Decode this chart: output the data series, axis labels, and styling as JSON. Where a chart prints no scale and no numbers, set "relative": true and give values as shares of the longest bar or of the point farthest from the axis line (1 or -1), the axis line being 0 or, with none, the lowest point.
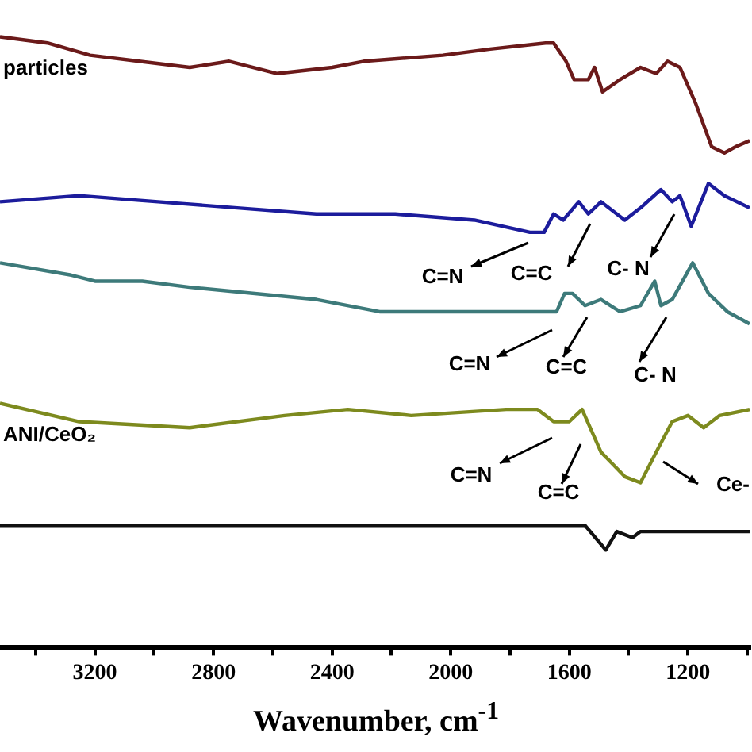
{
  "chart_data": {
    "type": "line",
    "relative": true,
    "xlabel": "Wavenumber, cm$^{-1}$",
    "xlim": [
      3520,
      992
    ],
    "xticks": [
      {
        "value": 3400,
        "label": null
      },
      3200,
      {
        "value": 3000,
        "label": null
      },
      2800,
      {
        "value": 2600,
        "label": null
      },
      2400,
      {
        "value": 2200,
        "label": null
      },
      2000,
      {
        "value": 1800,
        "label": null
      },
      1600,
      {
        "value": 1400,
        "label": null
      },
      1200,
      {
        "value": 1000,
        "label": null
      }
    ],
    "grid": false,
    "legend": false,
    "marker": "none",
    "line_style": "solid",
    "tick_labels": "x",
    "series": [
      {
        "name": "particles",
        "color": "#6b1a1a",
        "x": [
          3520,
          3360,
          3216,
          3051,
          2880,
          2747,
          2587,
          2400,
          2293,
          2027,
          1867,
          1680,
          1653,
          1611,
          1584,
          1536,
          1515,
          1488,
          1429,
          1360,
          1307,
          1269,
          1227,
          1173,
          1120,
          1077,
          1040,
          992
        ],
        "values": [
          1.0,
          0.99,
          0.97,
          0.96,
          0.95,
          0.96,
          0.94,
          0.95,
          0.96,
          0.97,
          0.98,
          0.99,
          0.99,
          0.96,
          0.93,
          0.93,
          0.95,
          0.91,
          0.93,
          0.95,
          0.94,
          0.96,
          0.95,
          0.89,
          0.82,
          0.81,
          0.82,
          0.83
        ]
      },
      {
        "color": "#1c1c9c",
        "x": [
          3520,
          3253,
          2987,
          2720,
          2453,
          2187,
          1920,
          1733,
          1685,
          1653,
          1621,
          1568,
          1536,
          1493,
          1413,
          1360,
          1291,
          1253,
          1227,
          1189,
          1131,
          1077,
          992
        ],
        "values": [
          0.73,
          0.74,
          0.73,
          0.72,
          0.71,
          0.71,
          0.7,
          0.68,
          0.68,
          0.71,
          0.7,
          0.73,
          0.71,
          0.73,
          0.7,
          0.72,
          0.75,
          0.73,
          0.74,
          0.69,
          0.76,
          0.74,
          0.72
        ]
      },
      {
        "color": "#3d7a7a",
        "x": [
          3520,
          3280,
          3200,
          3040,
          2880,
          2453,
          2240,
          1973,
          1643,
          1616,
          1589,
          1547,
          1493,
          1429,
          1360,
          1312,
          1291,
          1253,
          1184,
          1131,
          1067,
          992
        ],
        "values": [
          0.63,
          0.61,
          0.6,
          0.6,
          0.59,
          0.57,
          0.55,
          0.55,
          0.55,
          0.58,
          0.58,
          0.56,
          0.57,
          0.55,
          0.56,
          0.6,
          0.56,
          0.57,
          0.63,
          0.58,
          0.55,
          0.53
        ]
      },
      {
        "name": "ANI/CeO₂",
        "color": "#7d8a1e",
        "x": [
          3520,
          3253,
          2880,
          2560,
          2347,
          2133,
          1813,
          1707,
          1653,
          1600,
          1557,
          1493,
          1413,
          1360,
          1307,
          1253,
          1200,
          1147,
          1093,
          992
        ],
        "values": [
          0.4,
          0.37,
          0.36,
          0.38,
          0.39,
          0.38,
          0.39,
          0.39,
          0.37,
          0.37,
          0.39,
          0.32,
          0.28,
          0.27,
          0.32,
          0.37,
          0.38,
          0.36,
          0.38,
          0.39
        ]
      },
      {
        "color": "#111111",
        "x": [
          3520,
          2987,
          2453,
          1547,
          1477,
          1440,
          1387,
          1360,
          992
        ],
        "values": [
          0.2,
          0.2,
          0.2,
          0.2,
          0.16,
          0.19,
          0.18,
          0.19,
          0.19
        ]
      }
    ],
    "annotations": [
      "C=N",
      "C=C",
      "C- N",
      "C=N",
      "C=C",
      "C- N",
      "C=N",
      "C=C",
      "Ce-"
    ]
  }
}
